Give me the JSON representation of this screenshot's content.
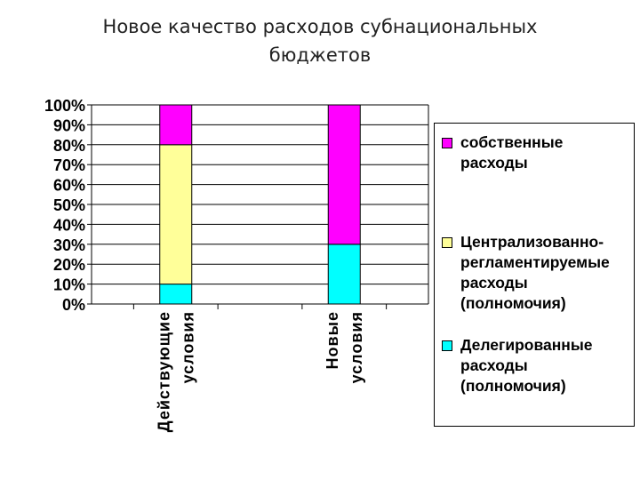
{
  "slide": {
    "title_line1": "Новое качество расходов субнациональных",
    "title_line2": "бюджетов"
  },
  "chart_data": {
    "type": "bar",
    "stacked": true,
    "percent": true,
    "categories": [
      "Действующие\nусловия",
      "Новые\nусловия"
    ],
    "series": [
      {
        "name": "Делегированные расходы (полномочия)",
        "values": [
          10,
          30
        ],
        "color": "#00FFFF"
      },
      {
        "name": "Централизованно-регламентируемые расходы (полномочия)",
        "values": [
          70,
          0
        ],
        "color": "#FFFF99"
      },
      {
        "name": "собственные расходы",
        "values": [
          20,
          70
        ],
        "color": "#FF00FF"
      }
    ],
    "ylim": [
      0,
      100
    ],
    "yticks": [
      "0%",
      "10%",
      "20%",
      "30%",
      "40%",
      "50%",
      "60%",
      "70%",
      "80%",
      "90%",
      "100%"
    ],
    "grid": true,
    "legend_position": "right"
  },
  "legend": {
    "items": [
      {
        "label": "собственные\nрасходы",
        "color": "#FF00FF"
      },
      {
        "label": "Централизованно-\nрегламентируемые\nрасходы\n(полномочия)",
        "color": "#FFFF99"
      },
      {
        "label": "Делегированные\nрасходы\n(полномочия)",
        "color": "#00FFFF"
      }
    ]
  }
}
